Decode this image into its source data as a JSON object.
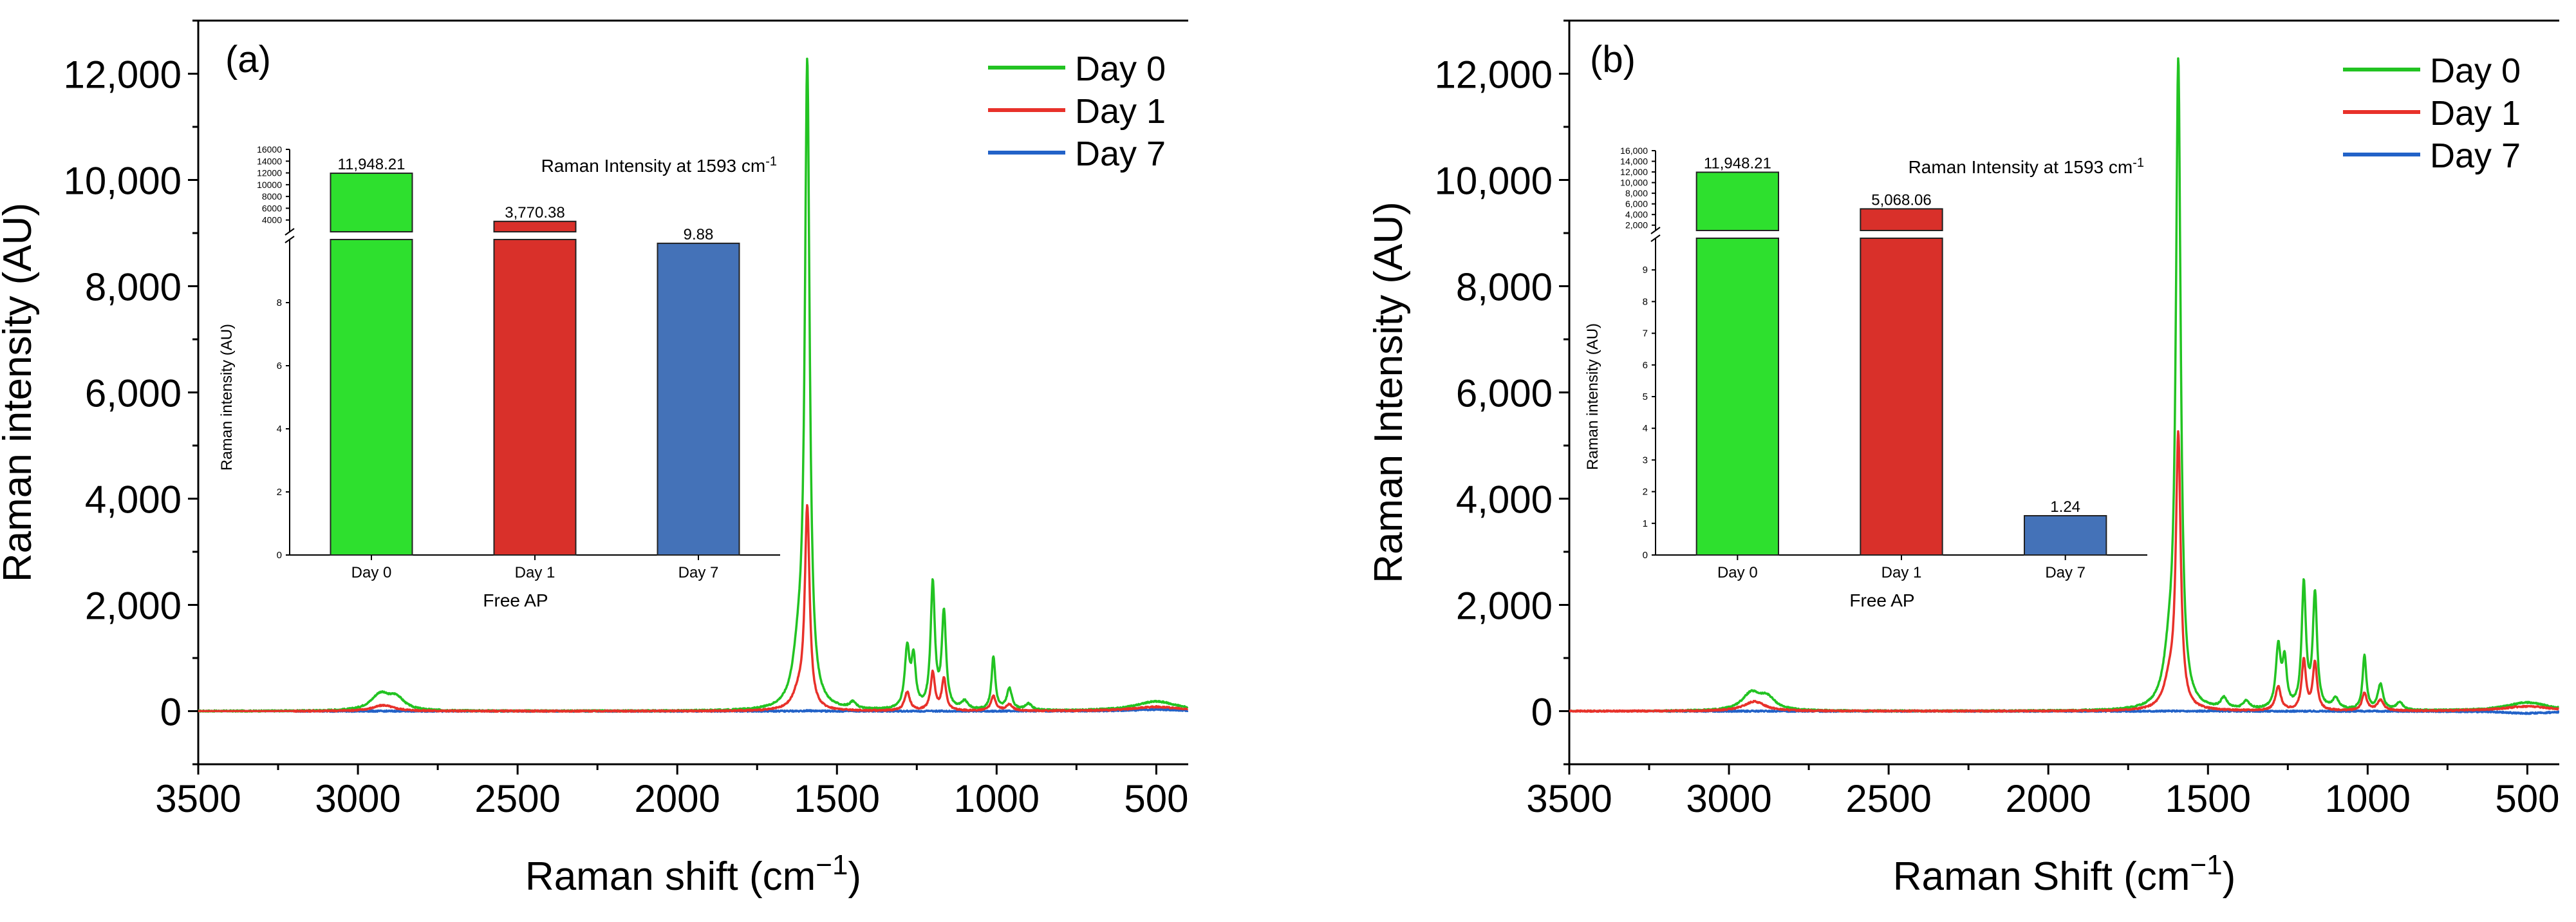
{
  "chart_data": [
    {
      "type": "line",
      "panel_label": "(a)",
      "xlabel_main": "Raman shift (cm",
      "xlabel_sup": "−1",
      "xlabel_tail": ")",
      "ylabel": "Raman intensity (AU)",
      "xlim": [
        3500,
        400
      ],
      "ylim": [
        -1000,
        13000
      ],
      "x_ticks": [
        3500,
        3000,
        2500,
        2000,
        1500,
        1000,
        500
      ],
      "y_ticks": [
        0,
        2000,
        4000,
        6000,
        8000,
        10000,
        12000
      ],
      "y_tick_labels": [
        "0",
        "2,000",
        "4,000",
        "6,000",
        "8,000",
        "10,000",
        "12,000"
      ],
      "legend": [
        "Day 0",
        "Day 1",
        "Day 7"
      ],
      "legend_position": "top-right",
      "colors": [
        "#22c322",
        "#e8312a",
        "#2262c8"
      ],
      "series": [
        {
          "name": "Day 0",
          "baseline_start": 3500,
          "peaks": [
            [
              2930,
              300,
              35
            ],
            [
              2880,
              220,
              30
            ],
            [
              1620,
              900,
              22
            ],
            [
              1593,
              11948,
              9
            ],
            [
              1450,
              120,
              12
            ],
            [
              1280,
              1120,
              9
            ],
            [
              1260,
              900,
              8
            ],
            [
              1200,
              2350,
              8
            ],
            [
              1165,
              1800,
              8
            ],
            [
              1100,
              150,
              12
            ],
            [
              1010,
              1000,
              7
            ],
            [
              960,
              400,
              10
            ],
            [
              900,
              120,
              12
            ],
            [
              500,
              180,
              80
            ]
          ]
        },
        {
          "name": "Day 1",
          "baseline_start": 3200,
          "peaks": [
            [
              2920,
              110,
              40
            ],
            [
              1620,
              300,
              22
            ],
            [
              1593,
              3770,
              9
            ],
            [
              1280,
              350,
              10
            ],
            [
              1200,
              720,
              8
            ],
            [
              1165,
              600,
              8
            ],
            [
              1010,
              280,
              9
            ],
            [
              960,
              120,
              12
            ],
            [
              500,
              80,
              90
            ]
          ]
        },
        {
          "name": "Day 7",
          "baseline_start": 3200,
          "peaks": [
            [
              1593,
              12,
              10
            ],
            [
              500,
              30,
              90
            ]
          ]
        }
      ],
      "inset": {
        "title_main": "Raman Intensity at 1593 cm",
        "title_sup": "-1",
        "ylabel": "Raman intensity (AU)",
        "xlabel": "Free AP",
        "categories": [
          "Day 0",
          "Day 1",
          "Day 7"
        ],
        "values": [
          11948.21,
          3770.38,
          9.88
        ],
        "value_labels": [
          "11,948.21",
          "3,770.38",
          "9.88"
        ],
        "colors": [
          "#2ee02e",
          "#d9302a",
          "#4472b8"
        ],
        "lower_ylim": [
          0,
          10
        ],
        "lower_ticks": [
          0,
          2,
          4,
          6,
          8
        ],
        "upper_ylim": [
          2000,
          16000
        ],
        "upper_ticks": [
          4000,
          6000,
          8000,
          10000,
          12000,
          14000,
          16000
        ],
        "upper_tick_labels": [
          "4000",
          "6000",
          "8000",
          "10000",
          "12000",
          "14000",
          "16000"
        ]
      }
    },
    {
      "type": "line",
      "panel_label": "(b)",
      "xlabel_main": "Raman Shift (cm",
      "xlabel_sup": "−1",
      "xlabel_tail": ")",
      "ylabel": "Raman Intensity (AU)",
      "xlim": [
        3500,
        400
      ],
      "ylim": [
        -1000,
        13000
      ],
      "x_ticks": [
        3500,
        3000,
        2500,
        2000,
        1500,
        1000,
        500
      ],
      "y_ticks": [
        0,
        2000,
        4000,
        6000,
        8000,
        10000,
        12000
      ],
      "y_tick_labels": [
        "0",
        "2,000",
        "4,000",
        "6,000",
        "8,000",
        "10,000",
        "12,000"
      ],
      "legend": [
        "Day 0",
        "Day 1",
        "Day 7"
      ],
      "legend_position": "top-right",
      "colors": [
        "#22c322",
        "#e8312a",
        "#2262c8"
      ],
      "series": [
        {
          "name": "Day 0",
          "baseline_start": 3200,
          "peaks": [
            [
              2930,
              320,
              35
            ],
            [
              2880,
              220,
              30
            ],
            [
              1620,
              900,
              22
            ],
            [
              1593,
              11948,
              9
            ],
            [
              1450,
              200,
              12
            ],
            [
              1380,
              150,
              12
            ],
            [
              1280,
              1150,
              9
            ],
            [
              1260,
              850,
              8
            ],
            [
              1200,
              2330,
              8
            ],
            [
              1165,
              2150,
              8
            ],
            [
              1100,
              200,
              12
            ],
            [
              1010,
              1020,
              7
            ],
            [
              960,
              480,
              10
            ],
            [
              900,
              150,
              12
            ],
            [
              500,
              160,
              80
            ]
          ]
        },
        {
          "name": "Day 1",
          "baseline_start": 3500,
          "peaks": [
            [
              2920,
              180,
              40
            ],
            [
              1620,
              500,
              22
            ],
            [
              1593,
              5068,
              9
            ],
            [
              1280,
              450,
              10
            ],
            [
              1200,
              950,
              8
            ],
            [
              1165,
              900,
              8
            ],
            [
              1010,
              330,
              9
            ],
            [
              960,
              200,
              12
            ],
            [
              500,
              90,
              90
            ]
          ]
        },
        {
          "name": "Day 7",
          "baseline_start": 3200,
          "peaks": [
            [
              1593,
              3,
              10
            ],
            [
              500,
              -40,
              90
            ]
          ]
        }
      ],
      "inset": {
        "title_main": "Raman Intensity at 1593 cm",
        "title_sup": "-1",
        "ylabel": "Raman intensity (AU)",
        "xlabel": "Free AP",
        "categories": [
          "Day 0",
          "Day 1",
          "Day 7"
        ],
        "values": [
          11948.21,
          5068.06,
          1.24
        ],
        "value_labels": [
          "11,948.21",
          "5,068.06",
          "1.24"
        ],
        "colors": [
          "#2ee02e",
          "#d9302a",
          "#4472b8"
        ],
        "lower_ylim": [
          0,
          10
        ],
        "lower_ticks": [
          0,
          1,
          2,
          3,
          4,
          5,
          6,
          7,
          8,
          9
        ],
        "upper_ylim": [
          1000,
          16000
        ],
        "upper_ticks": [
          2000,
          4000,
          6000,
          8000,
          10000,
          12000,
          14000,
          16000
        ],
        "upper_tick_labels": [
          "2,000",
          "4,000",
          "6,000",
          "8,000",
          "10,000",
          "12,000",
          "14,000",
          "16,000"
        ]
      }
    }
  ]
}
